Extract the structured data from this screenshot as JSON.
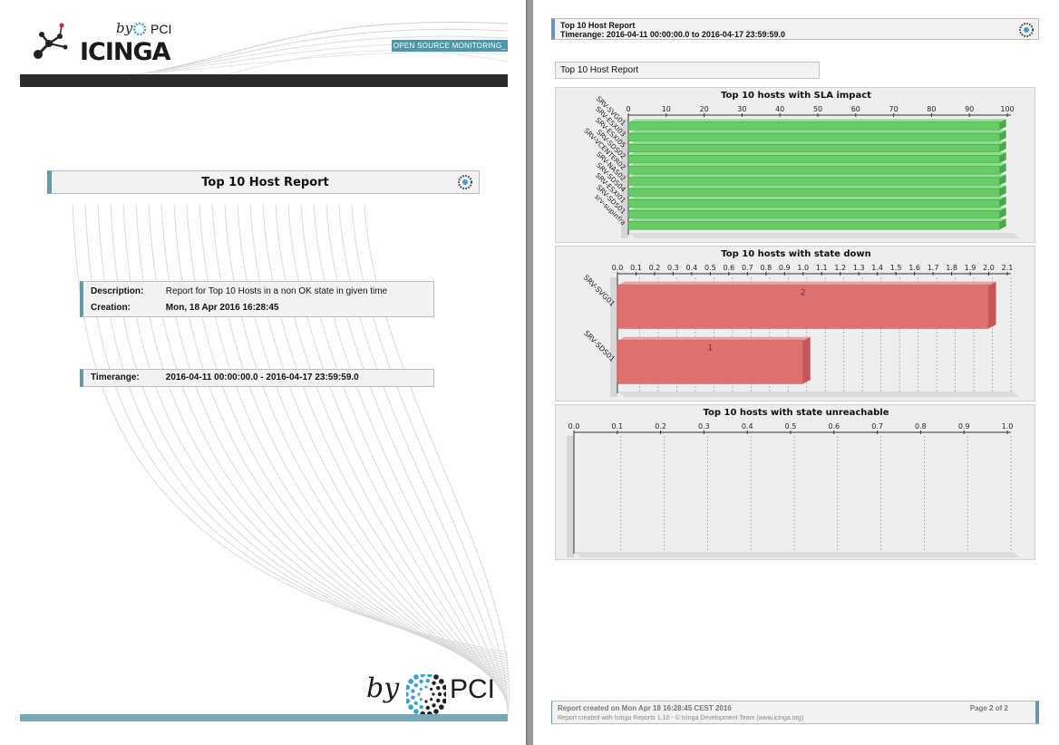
{
  "page1": {
    "logo": {
      "brand": "ICINGA",
      "by": "by",
      "company": "PCI",
      "tagline": "OPEN SOURCE MONITORING_"
    },
    "title": "Top 10 Host Report",
    "description_label": "Description:",
    "description_value": "Report for Top 10 Hosts in a non OK state in given time",
    "creation_label": "Creation:",
    "creation_value": "Mon, 18 Apr 2016 16:28:45",
    "timerange_label": "Timerange:",
    "timerange_value": "2016-04-11 00:00:00.0 - 2016-04-17 23:59:59.0",
    "footer_by": "by",
    "footer_company": "PCI"
  },
  "page2": {
    "header_title": "Top 10 Host Report",
    "header_timerange": "Timerange: 2016-04-11 00:00:00.0 to 2016-04-17 23:59:59.0",
    "report_tag": "Top 10 Host Report",
    "footer_created": "Report created on Mon Apr 18 16:28:45 CEST 2016",
    "footer_credits": "Report created with Icinga Reports 1.10 - © Icinga Development Team (www.icinga.org)",
    "footer_page": "Page 2 of 2"
  },
  "colors": {
    "accent": "#6a97a8",
    "sla_bar": "#66cc66",
    "down_bar": "#e07070",
    "panel": "#eeeeee"
  },
  "chart_data": [
    {
      "type": "bar",
      "orientation": "horizontal",
      "title": "Top 10 hosts with SLA impact",
      "categories": [
        "SRV-SVG01",
        "SRV-ESXI03",
        "SRV-ESXI05",
        "SRV-SDS02",
        "SRV-VCENTER02",
        "SRV-NAS02",
        "SRV-SDS04",
        "SRV-ESXI01",
        "SRV-SDS01",
        "srv-supinfra"
      ],
      "values": [
        98,
        98,
        98,
        98,
        98,
        98,
        98,
        98,
        98,
        98
      ],
      "xlim": [
        0,
        100
      ],
      "ticks": [
        0,
        10,
        20,
        30,
        40,
        50,
        60,
        70,
        80,
        90,
        100
      ],
      "grid": false
    },
    {
      "type": "bar",
      "orientation": "horizontal",
      "title": "Top 10 hosts with state down",
      "categories": [
        "SRV-SVG01",
        "SRV-SDS01"
      ],
      "values": [
        2,
        1
      ],
      "data_labels": [
        "2",
        "1"
      ],
      "xlim": [
        0,
        2.1
      ],
      "ticks": [
        "0.0",
        "0.1",
        "0.2",
        "0.3",
        "0.4",
        "0.5",
        "0.6",
        "0.7",
        "0.8",
        "0.9",
        "1.0",
        "1.1",
        "1.2",
        "1.3",
        "1.4",
        "1.5",
        "1.6",
        "1.7",
        "1.8",
        "1.9",
        "2.0",
        "2.1"
      ],
      "grid": true
    },
    {
      "type": "bar",
      "orientation": "horizontal",
      "title": "Top 10 hosts with state unreachable",
      "categories": [],
      "values": [],
      "xlim": [
        0,
        1
      ],
      "ticks": [
        "0.0",
        "0.1",
        "0.2",
        "0.3",
        "0.4",
        "0.5",
        "0.6",
        "0.7",
        "0.8",
        "0.9",
        "1.0"
      ],
      "grid": true
    }
  ]
}
